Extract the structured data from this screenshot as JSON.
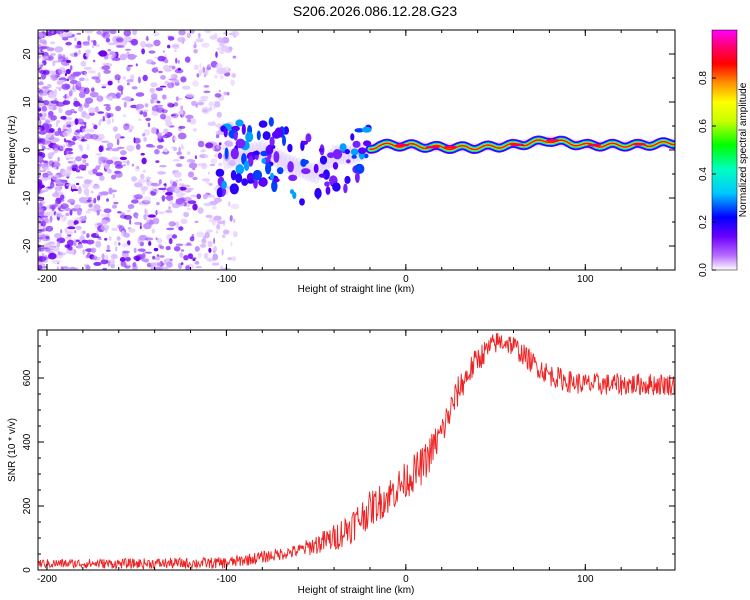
{
  "title": "S206.2026.086.12.28.G23",
  "chart_data": [
    {
      "type": "heatmap",
      "name": "spectrogram",
      "xlabel": "Height of straight line (km)",
      "ylabel": "Frequency (Hz)",
      "xlim": [
        -205,
        150
      ],
      "ylim": [
        -25,
        25
      ],
      "xticks": [
        -200,
        -100,
        0,
        100
      ],
      "yticks": [
        -20,
        -10,
        0,
        10,
        20
      ],
      "colorbar": {
        "label": "Normalized spectral amplitude",
        "range": [
          0,
          1
        ],
        "ticks": [
          0.0,
          0.2,
          0.4,
          0.6,
          0.8
        ]
      },
      "ridge": [
        {
          "x": -100,
          "y": -2
        },
        {
          "x": -80,
          "y": 0
        },
        {
          "x": -65,
          "y": -3
        },
        {
          "x": -50,
          "y": -5
        },
        {
          "x": -40,
          "y": -1
        },
        {
          "x": -30,
          "y": -1
        },
        {
          "x": -15,
          "y": 1
        },
        {
          "x": 0,
          "y": 1
        },
        {
          "x": 20,
          "y": 0.5
        },
        {
          "x": 40,
          "y": 0.5
        },
        {
          "x": 60,
          "y": 1
        },
        {
          "x": 80,
          "y": 2
        },
        {
          "x": 100,
          "y": 1
        },
        {
          "x": 130,
          "y": 1
        },
        {
          "x": 150,
          "y": 1.5
        }
      ]
    },
    {
      "type": "line",
      "name": "snr",
      "xlabel": "Height of straight line (km)",
      "ylabel": "SNR (10 * v/v)",
      "xlim": [
        -205,
        150
      ],
      "ylim": [
        0,
        750
      ],
      "xticks": [
        -200,
        -100,
        0,
        100
      ],
      "yticks": [
        0,
        200,
        400,
        600
      ],
      "color": "#ee2222",
      "envelope": [
        {
          "x": -205,
          "y": 20
        },
        {
          "x": -150,
          "y": 20
        },
        {
          "x": -100,
          "y": 22
        },
        {
          "x": -80,
          "y": 40
        },
        {
          "x": -60,
          "y": 60
        },
        {
          "x": -40,
          "y": 100
        },
        {
          "x": -30,
          "y": 140
        },
        {
          "x": -20,
          "y": 190
        },
        {
          "x": -10,
          "y": 230
        },
        {
          "x": 0,
          "y": 280
        },
        {
          "x": 10,
          "y": 330
        },
        {
          "x": 20,
          "y": 430
        },
        {
          "x": 30,
          "y": 570
        },
        {
          "x": 40,
          "y": 660
        },
        {
          "x": 50,
          "y": 710
        },
        {
          "x": 55,
          "y": 715
        },
        {
          "x": 60,
          "y": 700
        },
        {
          "x": 70,
          "y": 650
        },
        {
          "x": 80,
          "y": 610
        },
        {
          "x": 90,
          "y": 590
        },
        {
          "x": 100,
          "y": 580
        },
        {
          "x": 120,
          "y": 580
        },
        {
          "x": 150,
          "y": 580
        }
      ],
      "noise_amplitude": [
        {
          "x": -205,
          "y": 14
        },
        {
          "x": -60,
          "y": 20
        },
        {
          "x": -30,
          "y": 55
        },
        {
          "x": 10,
          "y": 60
        },
        {
          "x": 50,
          "y": 35
        },
        {
          "x": 150,
          "y": 35
        }
      ]
    }
  ]
}
